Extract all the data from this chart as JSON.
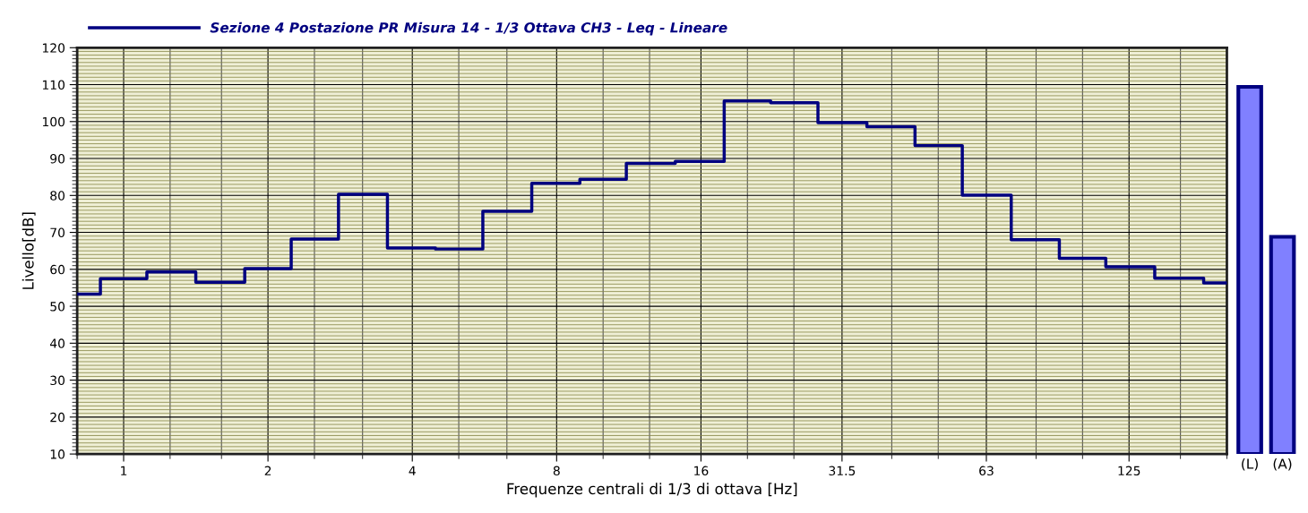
{
  "chart_data": [
    {
      "type": "step",
      "xlabel": "Frequenze centrali di 1/3 di ottava [Hz]",
      "ylabel": "Livello[dB]",
      "log": "x",
      "x": [
        0.8,
        1,
        1.25,
        1.6,
        2,
        2.5,
        3.15,
        4,
        5,
        6.3,
        8,
        10,
        12.5,
        16,
        20,
        25,
        31.5,
        40,
        50,
        63,
        80,
        100,
        125,
        160,
        200
      ],
      "series": [
        {
          "name": "Sezione 4 Postazione PR Misura 14 - 1/3 Ottava CH3 - Leq - Lineare",
          "color": "#000080",
          "values": [
            53.3,
            57.5,
            59.3,
            56.5,
            60.2,
            68.2,
            80.3,
            65.8,
            65.5,
            75.7,
            83.3,
            84.4,
            88.7,
            89.2,
            105.6,
            105.1,
            99.7,
            98.6,
            93.5,
            80.1,
            68,
            63,
            60.7,
            57.6,
            56.3
          ]
        }
      ],
      "xlim": [
        0.8,
        200
      ],
      "xticks": [
        1,
        2,
        4,
        8,
        16,
        31.5,
        63,
        125
      ],
      "ylim": [
        10,
        120
      ],
      "yticks": [
        10,
        {
          "value": 11,
          "label": null
        },
        {
          "value": 12,
          "label": null
        },
        {
          "value": 13,
          "label": null
        },
        {
          "value": 14,
          "label": null
        },
        {
          "value": 15,
          "label": null
        },
        {
          "value": 16,
          "label": null
        },
        {
          "value": 17,
          "label": null
        },
        {
          "value": 18,
          "label": null
        },
        {
          "value": 19,
          "label": null
        },
        20,
        {
          "value": 21,
          "label": null
        },
        {
          "value": 22,
          "label": null
        },
        {
          "value": 23,
          "label": null
        },
        {
          "value": 24,
          "label": null
        },
        {
          "value": 25,
          "label": null
        },
        {
          "value": 26,
          "label": null
        },
        {
          "value": 27,
          "label": null
        },
        {
          "value": 28,
          "label": null
        },
        {
          "value": 29,
          "label": null
        },
        30,
        {
          "value": 31,
          "label": null
        },
        {
          "value": 32,
          "label": null
        },
        {
          "value": 33,
          "label": null
        },
        {
          "value": 34,
          "label": null
        },
        {
          "value": 35,
          "label": null
        },
        {
          "value": 36,
          "label": null
        },
        {
          "value": 37,
          "label": null
        },
        {
          "value": 38,
          "label": null
        },
        {
          "value": 39,
          "label": null
        },
        40,
        {
          "value": 41,
          "label": null
        },
        {
          "value": 42,
          "label": null
        },
        {
          "value": 43,
          "label": null
        },
        {
          "value": 44,
          "label": null
        },
        {
          "value": 45,
          "label": null
        },
        {
          "value": 46,
          "label": null
        },
        {
          "value": 47,
          "label": null
        },
        {
          "value": 48,
          "label": null
        },
        {
          "value": 49,
          "label": null
        },
        50,
        {
          "value": 51,
          "label": null
        },
        {
          "value": 52,
          "label": null
        },
        {
          "value": 53,
          "label": null
        },
        {
          "value": 54,
          "label": null
        },
        {
          "value": 55,
          "label": null
        },
        {
          "value": 56,
          "label": null
        },
        {
          "value": 57,
          "label": null
        },
        {
          "value": 58,
          "label": null
        },
        {
          "value": 59,
          "label": null
        },
        60,
        {
          "value": 61,
          "label": null
        },
        {
          "value": 62,
          "label": null
        },
        {
          "value": 63,
          "label": null
        },
        {
          "value": 64,
          "label": null
        },
        {
          "value": 65,
          "label": null
        },
        {
          "value": 66,
          "label": null
        },
        {
          "value": 67,
          "label": null
        },
        {
          "value": 68,
          "label": null
        },
        {
          "value": 69,
          "label": null
        },
        70,
        {
          "value": 71,
          "label": null
        },
        {
          "value": 72,
          "label": null
        },
        {
          "value": 73,
          "label": null
        },
        {
          "value": 74,
          "label": null
        },
        {
          "value": 75,
          "label": null
        },
        {
          "value": 76,
          "label": null
        },
        {
          "value": 77,
          "label": null
        },
        {
          "value": 78,
          "label": null
        },
        {
          "value": 79,
          "label": null
        },
        80,
        {
          "value": 81,
          "label": null
        },
        {
          "value": 82,
          "label": null
        },
        {
          "value": 83,
          "label": null
        },
        {
          "value": 84,
          "label": null
        },
        {
          "value": 85,
          "label": null
        },
        {
          "value": 86,
          "label": null
        },
        {
          "value": 87,
          "label": null
        },
        {
          "value": 88,
          "label": null
        },
        {
          "value": 89,
          "label": null
        },
        90,
        {
          "value": 91,
          "label": null
        },
        {
          "value": 92,
          "label": null
        },
        {
          "value": 93,
          "label": null
        },
        {
          "value": 94,
          "label": null
        },
        {
          "value": 95,
          "label": null
        },
        {
          "value": 96,
          "label": null
        },
        {
          "value": 97,
          "label": null
        },
        {
          "value": 98,
          "label": null
        },
        {
          "value": 99,
          "label": null
        },
        100,
        {
          "value": 101,
          "label": null
        },
        {
          "value": 102,
          "label": null
        },
        {
          "value": 103,
          "label": null
        },
        {
          "value": 104,
          "label": null
        },
        {
          "value": 105,
          "label": null
        },
        {
          "value": 106,
          "label": null
        },
        {
          "value": 107,
          "label": null
        },
        {
          "value": 108,
          "label": null
        },
        {
          "value": 109,
          "label": null
        },
        110,
        {
          "value": 111,
          "label": null
        },
        {
          "value": 112,
          "label": null
        },
        {
          "value": 113,
          "label": null
        },
        {
          "value": 114,
          "label": null
        },
        {
          "value": 115,
          "label": null
        },
        {
          "value": 116,
          "label": null
        },
        {
          "value": 117,
          "label": null
        },
        {
          "value": 118,
          "label": null
        },
        {
          "value": 119,
          "label": null
        },
        120
      ],
      "grid": true,
      "legend": "top left"
    },
    {
      "type": "bar",
      "categories": [
        "(L)",
        "(A)"
      ],
      "values": [
        109.4,
        68.8
      ],
      "color": "#8080ff",
      "ylim": [
        10,
        120
      ],
      "tick_labels": "x"
    }
  ]
}
